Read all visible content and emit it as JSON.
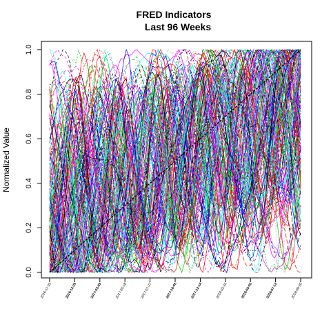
{
  "chart_data": {
    "type": "line",
    "title": "FRED Indicators",
    "subtitle": "Last 96 Weeks",
    "xlabel": "",
    "ylabel": "Normalized Value",
    "ylim": [
      0,
      1
    ],
    "yticks": [
      "0.0",
      "0.2",
      "0.4",
      "0.6",
      "0.8",
      "1.0"
    ],
    "xticks": [
      {
        "label": "2016-11-03",
        "bold": false
      },
      {
        "label": "2016-12-29",
        "bold": true
      },
      {
        "label": "2017-03-09",
        "bold": true
      },
      {
        "label": "2017-05-18",
        "bold": false
      },
      {
        "label": "2017-07-27",
        "bold": false
      },
      {
        "label": "2017-10-05",
        "bold": true
      },
      {
        "label": "2017-12-14",
        "bold": true
      },
      {
        "label": "2018-02-22",
        "bold": false
      },
      {
        "label": "2018-05-03",
        "bold": true
      },
      {
        "label": "2018-07-12",
        "bold": true
      },
      {
        "label": "2018-09-20",
        "bold": false
      }
    ],
    "n_points": 96,
    "n_series": 160,
    "grid": false,
    "legend": "none",
    "palette": [
      "#000000",
      "#ff0000",
      "#00cd00",
      "#0000ff",
      "#00ffff",
      "#ff00ff",
      "#bebebe"
    ],
    "trend": {
      "name": "trend",
      "start": 0.0,
      "end": 1.0
    }
  }
}
